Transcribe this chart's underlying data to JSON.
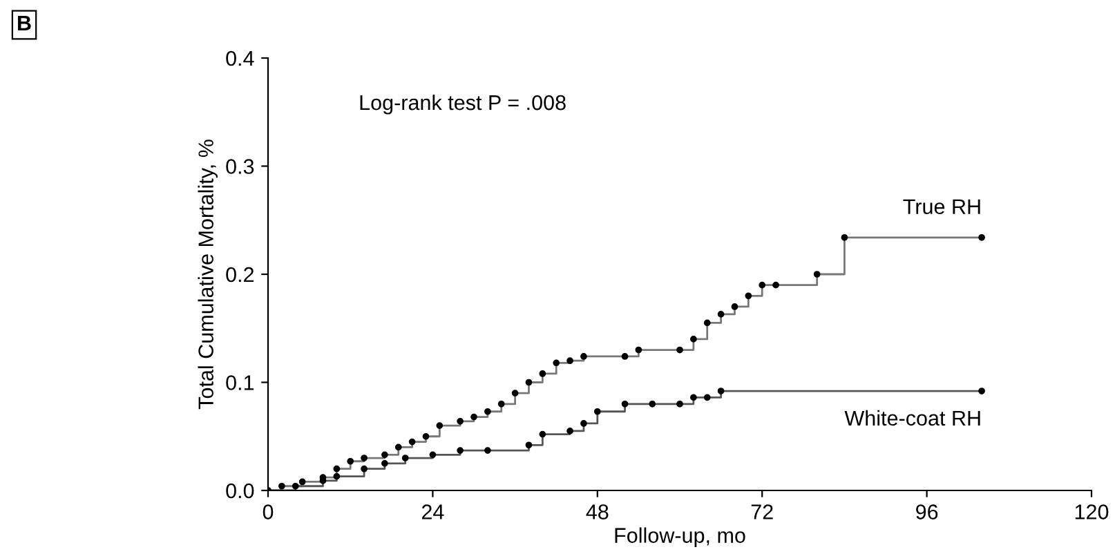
{
  "chart_data": {
    "type": "step",
    "xlabel": "Follow-up, mo",
    "ylabel": "Total Cumulative Mortality, %",
    "annotations": [
      "B",
      "Log-rank test P = .008"
    ],
    "xlim": [
      0,
      120
    ],
    "xticks": [
      0,
      24,
      48,
      72,
      96,
      120
    ],
    "ylim": [
      0,
      0.4
    ],
    "yticks": [
      {
        "value": 0,
        "label": "0.0"
      },
      {
        "value": 0.1,
        "label": "0.1"
      },
      {
        "value": 0.2,
        "label": "0.2"
      },
      {
        "value": 0.3,
        "label": "0.3"
      },
      {
        "value": 0.4,
        "label": "0.4"
      }
    ],
    "grid": false,
    "legend": false,
    "marker": "circle",
    "series": [
      {
        "name": "True RH",
        "color": "#777777",
        "x": [
          0,
          2,
          5,
          8,
          10,
          12,
          14,
          17,
          19,
          21,
          23,
          25,
          28,
          30,
          32,
          34,
          36,
          38,
          40,
          42,
          44,
          46,
          52,
          54,
          60,
          62,
          64,
          66,
          68,
          70,
          72,
          74,
          80,
          84,
          104
        ],
        "values": [
          0,
          0.004,
          0.008,
          0.012,
          0.02,
          0.027,
          0.03,
          0.033,
          0.04,
          0.045,
          0.05,
          0.06,
          0.064,
          0.068,
          0.073,
          0.08,
          0.09,
          0.1,
          0.108,
          0.118,
          0.12,
          0.124,
          0.124,
          0.13,
          0.13,
          0.14,
          0.155,
          0.163,
          0.17,
          0.18,
          0.19,
          0.19,
          0.2,
          0.234,
          0.234
        ]
      },
      {
        "name": "White-coat RH",
        "color": "#555555",
        "x": [
          0,
          4,
          8,
          10,
          14,
          17,
          20,
          24,
          28,
          32,
          38,
          40,
          44,
          46,
          48,
          52,
          56,
          60,
          62,
          64,
          66,
          104
        ],
        "values": [
          0,
          0.004,
          0.009,
          0.013,
          0.02,
          0.025,
          0.03,
          0.033,
          0.037,
          0.037,
          0.042,
          0.052,
          0.055,
          0.062,
          0.073,
          0.08,
          0.08,
          0.08,
          0.086,
          0.086,
          0.092,
          0.092
        ]
      }
    ]
  }
}
